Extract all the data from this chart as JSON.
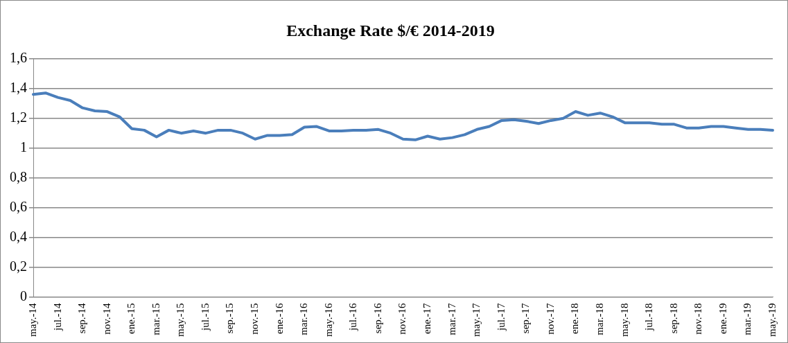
{
  "chart_data": {
    "type": "line",
    "title": "Exchange Rate $/€ 2014-2019",
    "categories": [
      "may.-14",
      null,
      "jul.-14",
      null,
      "sep.-14",
      null,
      "nov.-14",
      null,
      "ene.-15",
      null,
      "mar.-15",
      null,
      "may.-15",
      null,
      "jul.-15",
      null,
      "sep.-15",
      null,
      "nov.-15",
      null,
      "ene.-16",
      null,
      "mar.-16",
      null,
      "may.-16",
      null,
      "jul.-16",
      null,
      "sep.-16",
      null,
      "nov.-16",
      null,
      "ene.-17",
      null,
      "mar.-17",
      null,
      "may.-17",
      null,
      "jul.-17",
      null,
      "sep.-17",
      null,
      "nov.-17",
      null,
      "ene.-18",
      null,
      "mar.-18",
      null,
      "may.-18",
      null,
      "jul.-18",
      null,
      "sep.-18",
      null,
      "nov.-18",
      null,
      "ene.-19",
      null,
      "mar.-19",
      null,
      "may.-19"
    ],
    "series": [
      {
        "color": "#4a7ebb",
        "values": [
          1.36,
          1.37,
          1.34,
          1.32,
          1.27,
          1.25,
          1.245,
          1.21,
          1.13,
          1.12,
          1.075,
          1.12,
          1.1,
          1.115,
          1.1,
          1.12,
          1.12,
          1.1,
          1.06,
          1.085,
          1.085,
          1.09,
          1.14,
          1.145,
          1.115,
          1.115,
          1.12,
          1.12,
          1.125,
          1.1,
          1.06,
          1.055,
          1.08,
          1.06,
          1.07,
          1.09,
          1.125,
          1.145,
          1.185,
          1.19,
          1.18,
          1.165,
          1.185,
          1.2,
          1.245,
          1.22,
          1.235,
          1.21,
          1.17,
          1.17,
          1.17,
          1.16,
          1.16,
          1.135,
          1.135,
          1.145,
          1.145,
          1.135,
          1.125,
          1.125,
          1.12
        ]
      }
    ],
    "ylim": [
      0,
      1.6
    ],
    "yticks": [
      0,
      {
        "value": 0.2,
        "label": "0,2"
      },
      {
        "value": 0.4,
        "label": "0,4"
      },
      {
        "value": 0.6,
        "label": "0,6"
      },
      {
        "value": 0.8,
        "label": "0,8"
      },
      1,
      {
        "value": 1.2,
        "label": "1,2"
      },
      {
        "value": 1.4,
        "label": "1,4"
      },
      {
        "value": 1.6,
        "label": "1,6"
      }
    ],
    "grid": "y",
    "legend": false,
    "marker": "none",
    "line_style": "solid"
  }
}
